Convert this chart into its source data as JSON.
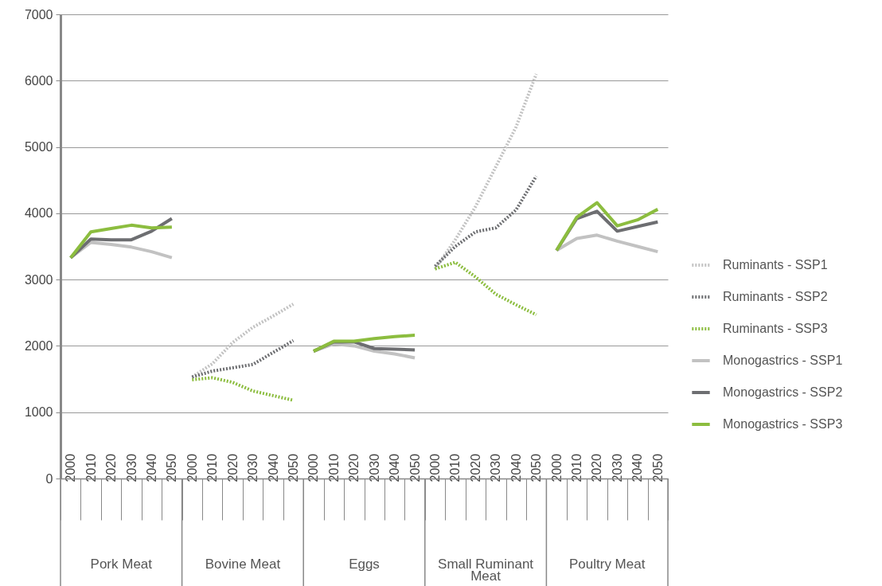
{
  "chart_data": {
    "type": "line",
    "categories": [
      "2000",
      "2010",
      "2020",
      "2030",
      "2040",
      "2050",
      "2000",
      "2010",
      "2020",
      "2030",
      "2040",
      "2050",
      "2000",
      "2010",
      "2020",
      "2030",
      "2040",
      "2050",
      "2000",
      "2010",
      "2020",
      "2030",
      "2040",
      "2050",
      "2000",
      "2010",
      "2020",
      "2030",
      "2040",
      "2050"
    ],
    "annotations": [
      "Pork Meat",
      "Bovine Meat",
      "Eggs",
      "Small Ruminant Meat",
      "Poultry Meat"
    ],
    "series": [
      {
        "name": "Ruminants - SSP1",
        "color": "#c2c2c2",
        "line_style": "dotted",
        "values": [
          null,
          null,
          null,
          null,
          null,
          null,
          1530,
          1730,
          2050,
          2280,
          2450,
          2630,
          null,
          null,
          null,
          null,
          null,
          null,
          3160,
          3600,
          4100,
          4700,
          5300,
          6100,
          null,
          null,
          null,
          null,
          null,
          null
        ]
      },
      {
        "name": "Ruminants - SSP2",
        "color": "#6d6e71",
        "line_style": "dotted",
        "values": [
          null,
          null,
          null,
          null,
          null,
          null,
          1530,
          1620,
          1670,
          1720,
          1900,
          2080,
          null,
          null,
          null,
          null,
          null,
          null,
          3200,
          3500,
          3720,
          3780,
          4050,
          4560,
          null,
          null,
          null,
          null,
          null,
          null
        ]
      },
      {
        "name": "Ruminants - SSP3",
        "color": "#8cbd3f",
        "line_style": "dotted",
        "values": [
          null,
          null,
          null,
          null,
          null,
          null,
          1490,
          1520,
          1450,
          1320,
          1250,
          1180,
          null,
          null,
          null,
          null,
          null,
          null,
          3160,
          3260,
          3040,
          2780,
          2620,
          2470,
          null,
          null,
          null,
          null,
          null,
          null
        ]
      },
      {
        "name": "Monogastrics - SSP1",
        "color": "#c2c2c2",
        "line_style": "solid",
        "values": [
          3330,
          3560,
          3530,
          3490,
          3420,
          3330,
          null,
          null,
          null,
          null,
          null,
          null,
          1920,
          2030,
          2000,
          1920,
          1880,
          1820,
          null,
          null,
          null,
          null,
          null,
          null,
          3440,
          3620,
          3670,
          3580,
          3500,
          3420
        ]
      },
      {
        "name": "Monogastrics - SSP2",
        "color": "#6d6e71",
        "line_style": "solid",
        "values": [
          3330,
          3610,
          3600,
          3600,
          3730,
          3920,
          null,
          null,
          null,
          null,
          null,
          null,
          1920,
          2060,
          2060,
          1960,
          1950,
          1940,
          null,
          null,
          null,
          null,
          null,
          null,
          3440,
          3920,
          4030,
          3730,
          3800,
          3870
        ]
      },
      {
        "name": "Monogastrics - SSP3",
        "color": "#8cbd3f",
        "line_style": "solid",
        "values": [
          3330,
          3720,
          3770,
          3820,
          3780,
          3790,
          null,
          null,
          null,
          null,
          null,
          null,
          1920,
          2070,
          2070,
          2110,
          2140,
          2160,
          null,
          null,
          null,
          null,
          null,
          null,
          3440,
          3940,
          4160,
          3810,
          3900,
          4060
        ]
      }
    ],
    "ylim": [
      0,
      7000
    ],
    "yticks": [
      0,
      {
        "value": 1000,
        "label": "1000"
      },
      {
        "value": 2000,
        "label": "2000"
      },
      {
        "value": 3000,
        "label": "3000"
      },
      {
        "value": 4000,
        "label": "4000"
      },
      {
        "value": 5000,
        "label": "5000"
      },
      {
        "value": 6000,
        "label": "6000"
      },
      {
        "value": 7000,
        "label": "7000"
      }
    ],
    "grid": "y",
    "legend": "right"
  }
}
